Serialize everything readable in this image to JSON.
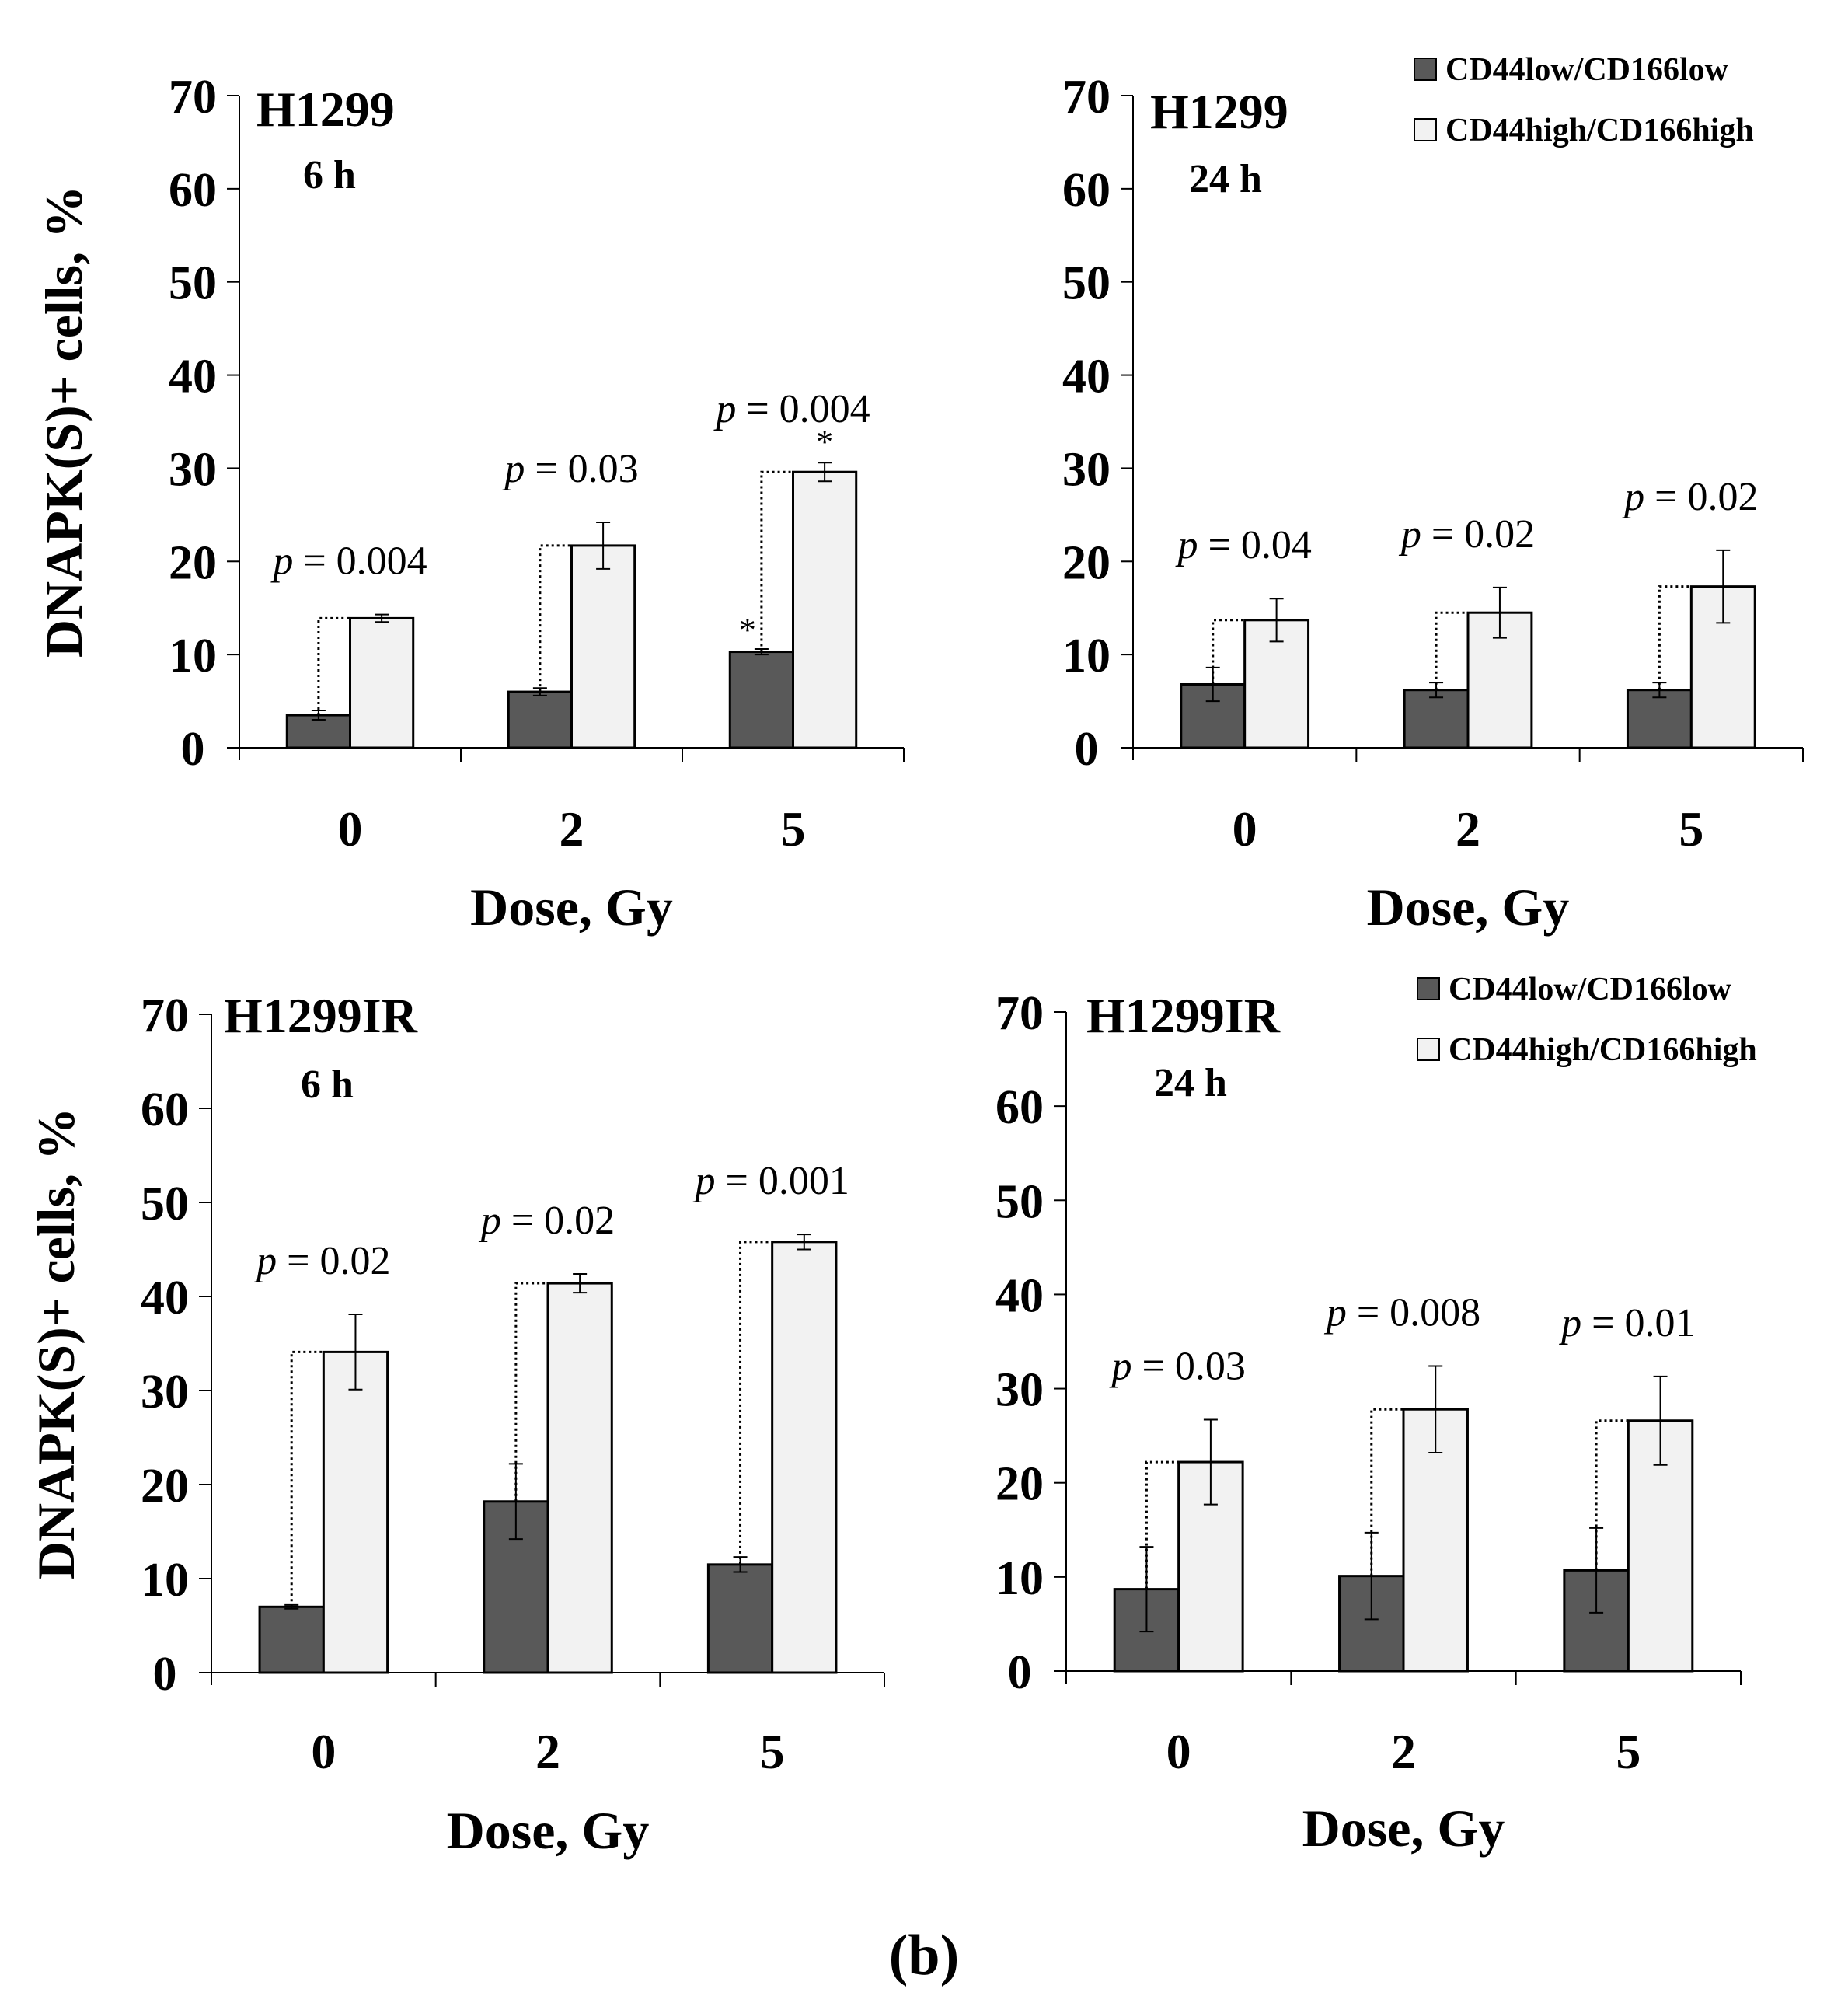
{
  "figure": {
    "caption": "(b)",
    "ylabel": "DNAPK(S)+ cells, %",
    "xlabel": "Dose, Gy",
    "legend": {
      "low": "CD44low/CD166low",
      "high": "CD44high/CD166high"
    },
    "colors": {
      "low": "#595959",
      "high": "#f2f2f2",
      "edge": "#000000"
    }
  },
  "chart_data": [
    {
      "type": "bar",
      "title": "H1299",
      "subtitle": "6 h",
      "xlabel": "Dose, Gy",
      "ylabel": "DNAPK(S)+ cells, %",
      "ylim": [
        0,
        70
      ],
      "yticks": [
        0,
        10,
        20,
        30,
        40,
        50,
        60,
        70
      ],
      "categories": [
        "0",
        "2",
        "5"
      ],
      "series": [
        {
          "name": "CD44low/CD166low",
          "values": [
            3.5,
            6.0,
            10.3
          ],
          "errors": [
            0.5,
            0.4,
            0.3
          ]
        },
        {
          "name": "CD44high/CD166high",
          "values": [
            13.9,
            21.7,
            29.6
          ],
          "errors": [
            0.4,
            2.5,
            1.0
          ]
        }
      ],
      "p_values": [
        "p = 0.004",
        "p = 0.03",
        "p = 0.004"
      ],
      "stars": {
        "low": [
          false,
          false,
          true
        ],
        "high": [
          false,
          false,
          true
        ]
      },
      "legend": false
    },
    {
      "type": "bar",
      "title": "H1299",
      "subtitle": "24 h",
      "xlabel": "Dose, Gy",
      "ylabel": "",
      "ylim": [
        0,
        70
      ],
      "yticks": [
        0,
        10,
        20,
        30,
        40,
        50,
        60,
        70
      ],
      "categories": [
        "0",
        "2",
        "5"
      ],
      "series": [
        {
          "name": "CD44low/CD166low",
          "values": [
            6.8,
            6.2,
            6.2
          ],
          "errors": [
            1.8,
            0.8,
            0.8
          ]
        },
        {
          "name": "CD44high/CD166high",
          "values": [
            13.7,
            14.5,
            17.3
          ],
          "errors": [
            2.3,
            2.7,
            3.9
          ]
        }
      ],
      "p_values": [
        "p = 0.04",
        "p = 0.02",
        "p = 0.02"
      ],
      "stars": {
        "low": [
          false,
          false,
          false
        ],
        "high": [
          false,
          false,
          false
        ]
      },
      "legend": true
    },
    {
      "type": "bar",
      "title": "H1299IR",
      "subtitle": "6 h",
      "xlabel": "Dose, Gy",
      "ylabel": "DNAPK(S)+ cells, %",
      "ylim": [
        0,
        70
      ],
      "yticks": [
        0,
        10,
        20,
        30,
        40,
        50,
        60,
        70
      ],
      "categories": [
        "0",
        "2",
        "5"
      ],
      "series": [
        {
          "name": "CD44low/CD166low",
          "values": [
            7.0,
            18.2,
            11.5
          ],
          "errors": [
            0.2,
            4.0,
            0.8
          ]
        },
        {
          "name": "CD44high/CD166high",
          "values": [
            34.1,
            41.4,
            45.8
          ],
          "errors": [
            4.0,
            1.0,
            0.8
          ]
        }
      ],
      "p_values": [
        "p = 0.02",
        "p = 0.02",
        "p = 0.001"
      ],
      "stars": {
        "low": [
          false,
          false,
          false
        ],
        "high": [
          false,
          false,
          false
        ]
      },
      "legend": false
    },
    {
      "type": "bar",
      "title": "H1299IR",
      "subtitle": "24 h",
      "xlabel": "Dose, Gy",
      "ylabel": "",
      "ylim": [
        0,
        70
      ],
      "yticks": [
        0,
        10,
        20,
        30,
        40,
        50,
        60,
        70
      ],
      "categories": [
        "0",
        "2",
        "5"
      ],
      "series": [
        {
          "name": "CD44low/CD166low",
          "values": [
            8.7,
            10.1,
            10.7
          ],
          "errors": [
            4.5,
            4.6,
            4.5
          ]
        },
        {
          "name": "CD44high/CD166high",
          "values": [
            22.2,
            27.8,
            26.6
          ],
          "errors": [
            4.5,
            4.6,
            4.7
          ]
        }
      ],
      "p_values": [
        "p = 0.03",
        "p = 0.008",
        "p = 0.01"
      ],
      "stars": {
        "low": [
          false,
          false,
          false
        ],
        "high": [
          false,
          false,
          false
        ]
      },
      "legend": true
    }
  ]
}
